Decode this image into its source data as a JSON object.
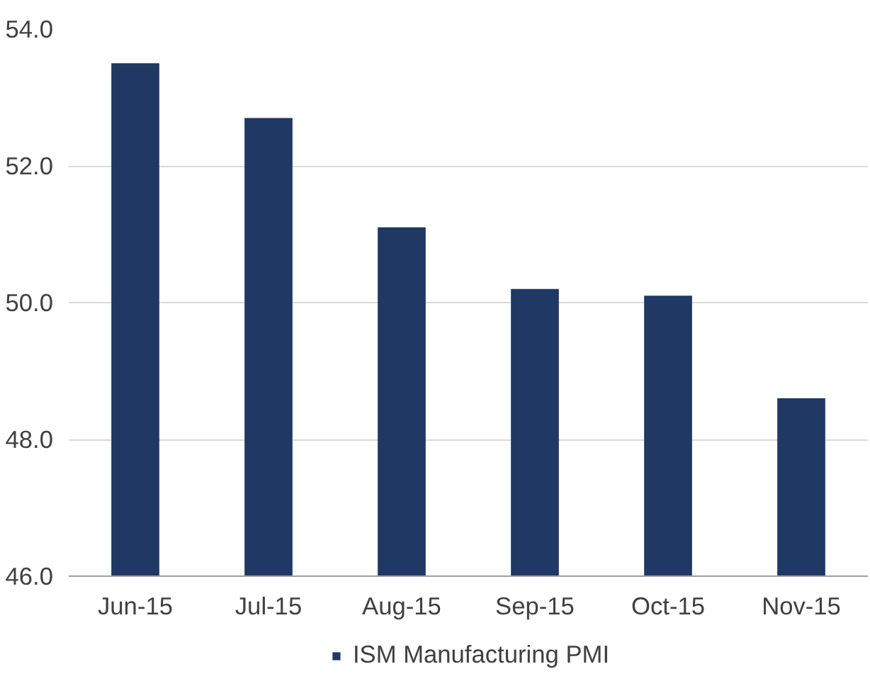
{
  "chart_data": {
    "type": "bar",
    "categories": [
      "Jun-15",
      "Jul-15",
      "Aug-15",
      "Sep-15",
      "Oct-15",
      "Nov-15"
    ],
    "series": [
      {
        "name": "ISM Manufacturing PMI",
        "color": "#1f3864",
        "values": [
          53.5,
          52.7,
          51.1,
          50.2,
          50.1,
          48.6
        ]
      }
    ],
    "ylim": [
      46,
      54
    ],
    "yticks": [
      {
        "value": 46,
        "label": "46.0"
      },
      {
        "value": 48,
        "label": "48.0"
      },
      {
        "value": 50,
        "label": "50.0"
      },
      {
        "value": 52,
        "label": "52.0"
      },
      {
        "value": 54,
        "label": "54.0"
      }
    ],
    "grid": "y",
    "legend": "bottom"
  }
}
